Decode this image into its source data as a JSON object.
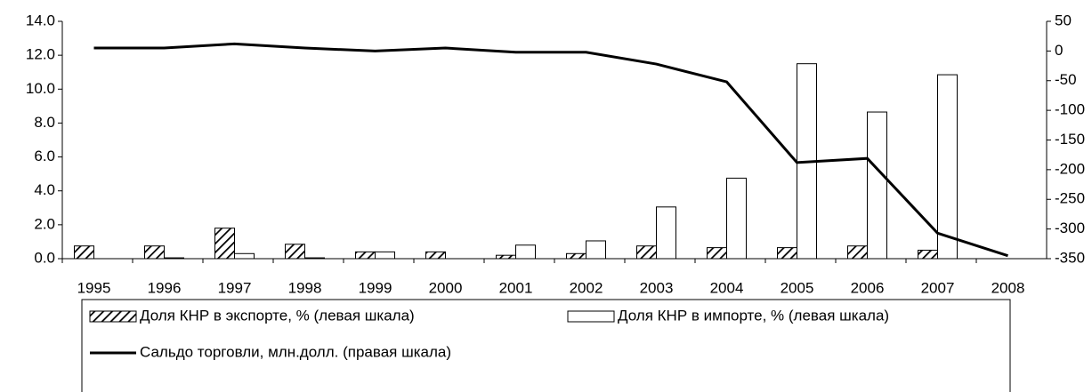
{
  "chart_data": {
    "type": "bar",
    "categories": [
      "1995",
      "1996",
      "1997",
      "1998",
      "1999",
      "2000",
      "2001",
      "2002",
      "2003",
      "2004",
      "2005",
      "2006",
      "2007",
      "2008"
    ],
    "series": [
      {
        "name": "Доля КНР в экспорте, % (левая шкала)",
        "type": "bar",
        "pattern": "hatch",
        "color": "#000000",
        "axis": "y",
        "values": [
          0.75,
          0.75,
          1.8,
          0.85,
          0.4,
          0.4,
          0.2,
          0.3,
          0.75,
          0.65,
          0.65,
          0.75,
          0.5,
          null
        ]
      },
      {
        "name": "Доля КНР в импорте, % (левая шкала)",
        "type": "bar",
        "color": "#ffffff",
        "axis": "y",
        "values": [
          null,
          0.05,
          0.3,
          0.05,
          0.4,
          null,
          0.8,
          1.05,
          3.05,
          4.75,
          11.5,
          8.65,
          10.85,
          null
        ]
      },
      {
        "name": "Сальдо торговли, млн.долл. (правая шкала)",
        "type": "line",
        "color": "#000000",
        "axis": "y2",
        "values": [
          5,
          5,
          12,
          5,
          0,
          5,
          -2,
          -2,
          -22,
          -52,
          -188,
          -181,
          -307,
          -345
        ]
      }
    ],
    "ylim": [
      0,
      14
    ],
    "yticks": [
      {
        "value": 0,
        "label": "0.0"
      },
      {
        "value": 2,
        "label": "2.0"
      },
      {
        "value": 4,
        "label": "4.0"
      },
      {
        "value": 6,
        "label": "6.0"
      },
      {
        "value": 8,
        "label": "8.0"
      },
      {
        "value": 10,
        "label": "10.0"
      },
      {
        "value": 12,
        "label": "12.0"
      },
      {
        "value": 14,
        "label": "14.0"
      }
    ],
    "y2lim": [
      -350,
      50
    ],
    "y2ticks": [
      -350,
      -300,
      -250,
      -200,
      -150,
      -100,
      -50,
      0,
      50
    ],
    "legend": "bottom"
  }
}
